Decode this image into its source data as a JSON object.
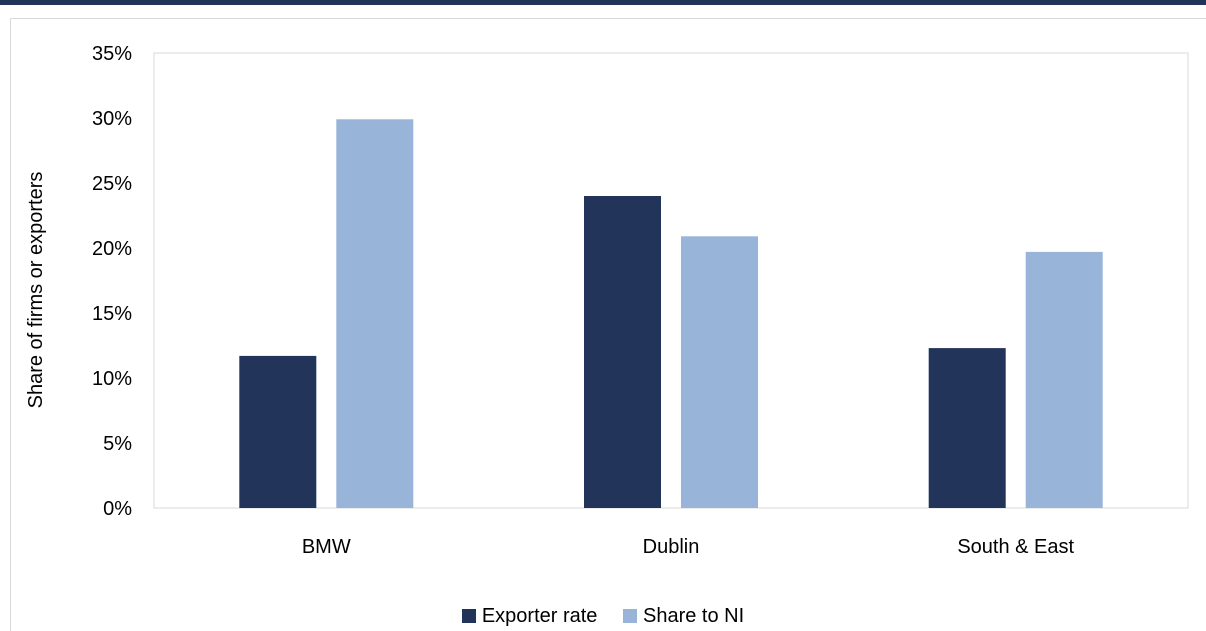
{
  "chart_data": {
    "type": "bar",
    "categories": [
      "BMW",
      "Dublin",
      "South & East"
    ],
    "series": [
      {
        "name": "Exporter rate",
        "color": "#22345a",
        "values": [
          11.7,
          24.0,
          12.3
        ]
      },
      {
        "name": "Share to NI",
        "color": "#98b4d8",
        "values": [
          29.9,
          20.9,
          19.7
        ]
      }
    ],
    "ylabel": "Share of firms or exporters",
    "xlabel": "",
    "ylim": [
      0,
      35
    ],
    "yticks": [
      "0%",
      "5%",
      "10%",
      "15%",
      "20%",
      "25%",
      "30%",
      "35%"
    ],
    "grid": false,
    "legend_position": "bottom"
  }
}
